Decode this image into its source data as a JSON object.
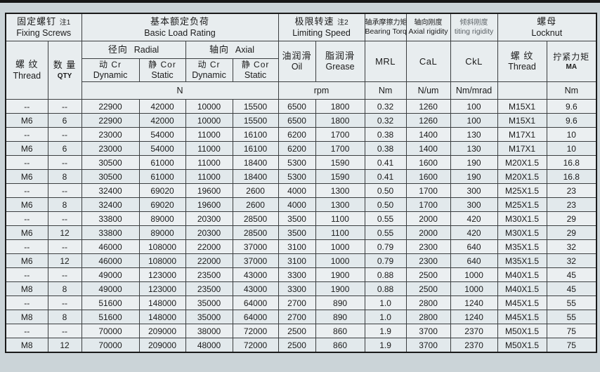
{
  "page": {
    "background": "#cbd4d8",
    "top_bar_color": "#161616"
  },
  "table": {
    "groups": {
      "fixing_screws": {
        "cn": "固定螺钉",
        "note": "注1",
        "en": "Fixing Screws"
      },
      "basic_load_rating": {
        "cn": "基本额定负荷",
        "en": "Basic Load Rating"
      },
      "limiting_speed": {
        "cn": "极限转速",
        "note": "注2",
        "en": "Limiting Speed"
      },
      "bearing_torque": {
        "cn": "轴承摩擦力矩",
        "en": "Bearing Torque"
      },
      "axial_rigidity": {
        "cn": "轴向刚度",
        "en": "Axial rigidity"
      },
      "tilting_rigidity": {
        "cn": "倾斜刚度",
        "en": "titing rigidity"
      },
      "locknut": {
        "cn": "螺母",
        "en": "Locknut"
      }
    },
    "subgroups": {
      "radial": {
        "cn": "径向",
        "en": "Radial"
      },
      "axial": {
        "cn": "轴向",
        "en": "Axial"
      }
    },
    "columns": {
      "thread": {
        "cn": "螺 纹",
        "en": "Thread"
      },
      "qty": {
        "cn": "数 量",
        "en": "QTY"
      },
      "dynamic_cr": {
        "cn": "动 Cr",
        "en": "Dynamic"
      },
      "static_cor": {
        "cn": "静 Cor",
        "en": "Static"
      },
      "oil": {
        "cn": "油润滑",
        "en": "Oil"
      },
      "grease": {
        "cn": "脂润滑",
        "en": "Grease"
      },
      "mrl": "MRL",
      "cal": "CaL",
      "ckl": "CkL",
      "locknut_thread": {
        "cn": "螺 纹",
        "en": "Thread"
      },
      "ma": {
        "cn": "拧紧力矩",
        "en": "MA"
      }
    },
    "units": {
      "load": "N",
      "speed": "rpm",
      "mrl": "Nm",
      "cal": "N/um",
      "ckl": "Nm/mrad",
      "locknut_thread": "",
      "ma": "Nm"
    },
    "rows": [
      [
        "--",
        "--",
        "22900",
        "42000",
        "10000",
        "15500",
        "6500",
        "1800",
        "0.32",
        "1260",
        "100",
        "M15X1",
        "9.6"
      ],
      [
        "M6",
        "6",
        "22900",
        "42000",
        "10000",
        "15500",
        "6500",
        "1800",
        "0.32",
        "1260",
        "100",
        "M15X1",
        "9.6"
      ],
      [
        "--",
        "--",
        "23000",
        "54000",
        "11000",
        "16100",
        "6200",
        "1700",
        "0.38",
        "1400",
        "130",
        "M17X1",
        "10"
      ],
      [
        "M6",
        "6",
        "23000",
        "54000",
        "11000",
        "16100",
        "6200",
        "1700",
        "0.38",
        "1400",
        "130",
        "M17X1",
        "10"
      ],
      [
        "--",
        "--",
        "30500",
        "61000",
        "11000",
        "18400",
        "5300",
        "1590",
        "0.41",
        "1600",
        "190",
        "M20X1.5",
        "16.8"
      ],
      [
        "M6",
        "8",
        "30500",
        "61000",
        "11000",
        "18400",
        "5300",
        "1590",
        "0.41",
        "1600",
        "190",
        "M20X1.5",
        "16.8"
      ],
      [
        "--",
        "--",
        "32400",
        "69020",
        "19600",
        "2600",
        "4000",
        "1300",
        "0.50",
        "1700",
        "300",
        "M25X1.5",
        "23"
      ],
      [
        "M6",
        "8",
        "32400",
        "69020",
        "19600",
        "2600",
        "4000",
        "1300",
        "0.50",
        "1700",
        "300",
        "M25X1.5",
        "23"
      ],
      [
        "--",
        "--",
        "33800",
        "89000",
        "20300",
        "28500",
        "3500",
        "1100",
        "0.55",
        "2000",
        "420",
        "M30X1.5",
        "29"
      ],
      [
        "M6",
        "12",
        "33800",
        "89000",
        "20300",
        "28500",
        "3500",
        "1100",
        "0.55",
        "2000",
        "420",
        "M30X1.5",
        "29"
      ],
      [
        "--",
        "--",
        "46000",
        "108000",
        "22000",
        "37000",
        "3100",
        "1000",
        "0.79",
        "2300",
        "640",
        "M35X1.5",
        "32"
      ],
      [
        "M6",
        "12",
        "46000",
        "108000",
        "22000",
        "37000",
        "3100",
        "1000",
        "0.79",
        "2300",
        "640",
        "M35X1.5",
        "32"
      ],
      [
        "--",
        "--",
        "49000",
        "123000",
        "23500",
        "43000",
        "3300",
        "1900",
        "0.88",
        "2500",
        "1000",
        "M40X1.5",
        "45"
      ],
      [
        "M8",
        "8",
        "49000",
        "123000",
        "23500",
        "43000",
        "3300",
        "1900",
        "0.88",
        "2500",
        "1000",
        "M40X1.5",
        "45"
      ],
      [
        "--",
        "--",
        "51600",
        "148000",
        "35000",
        "64000",
        "2700",
        "890",
        "1.0",
        "2800",
        "1240",
        "M45X1.5",
        "55"
      ],
      [
        "M8",
        "8",
        "51600",
        "148000",
        "35000",
        "64000",
        "2700",
        "890",
        "1.0",
        "2800",
        "1240",
        "M45X1.5",
        "55"
      ],
      [
        "--",
        "--",
        "70000",
        "209000",
        "38000",
        "72000",
        "2500",
        "860",
        "1.9",
        "3700",
        "2370",
        "M50X1.5",
        "75"
      ],
      [
        "M8",
        "12",
        "70000",
        "209000",
        "48000",
        "72000",
        "2500",
        "860",
        "1.9",
        "3700",
        "2370",
        "M50X1.5",
        "75"
      ]
    ]
  }
}
